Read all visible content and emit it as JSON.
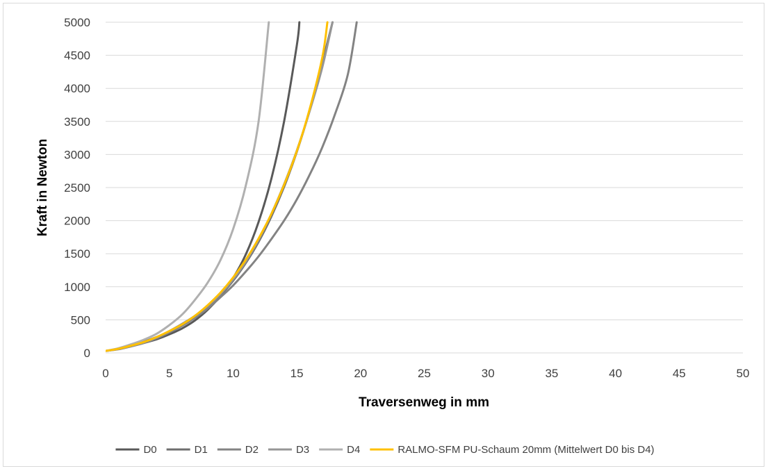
{
  "chart_data": {
    "type": "line",
    "title": "",
    "xlabel": "Traversenweg in mm",
    "ylabel": "Kraft in Newton",
    "xlim": [
      0,
      50
    ],
    "ylim": [
      0,
      5000
    ],
    "x_ticks": [
      0,
      5,
      10,
      15,
      20,
      25,
      30,
      35,
      40,
      45,
      50
    ],
    "y_ticks": [
      0,
      500,
      1000,
      1500,
      2000,
      2500,
      3000,
      3500,
      4000,
      4500,
      5000
    ],
    "grid": "horizontal",
    "legend_position": "bottom",
    "series": [
      {
        "name": "D0",
        "color": "#595959",
        "width": 3,
        "points": [
          [
            0,
            30
          ],
          [
            1,
            60
          ],
          [
            2,
            100
          ],
          [
            3,
            150
          ],
          [
            4,
            205
          ],
          [
            5,
            280
          ],
          [
            6,
            370
          ],
          [
            7,
            490
          ],
          [
            8,
            650
          ],
          [
            9,
            860
          ],
          [
            10,
            1130
          ],
          [
            11,
            1490
          ],
          [
            12,
            1980
          ],
          [
            13,
            2630
          ],
          [
            14,
            3500
          ],
          [
            15,
            4650
          ],
          [
            15.2,
            5000
          ]
        ]
      },
      {
        "name": "D1",
        "color": "#6e6e6e",
        "width": 3,
        "points": [
          [
            0,
            30
          ],
          [
            1,
            60
          ],
          [
            2,
            110
          ],
          [
            3,
            170
          ],
          [
            4,
            240
          ],
          [
            5,
            320
          ],
          [
            6,
            420
          ],
          [
            7,
            540
          ],
          [
            8,
            690
          ],
          [
            9,
            870
          ],
          [
            10,
            1090
          ],
          [
            11,
            1360
          ],
          [
            12,
            1680
          ],
          [
            13,
            2060
          ],
          [
            14,
            2510
          ],
          [
            15,
            3040
          ],
          [
            16,
            3660
          ],
          [
            17,
            4390
          ],
          [
            17.8,
            5000
          ]
        ]
      },
      {
        "name": "D2",
        "color": "#838383",
        "width": 3,
        "points": [
          [
            0,
            30
          ],
          [
            1,
            55
          ],
          [
            2,
            100
          ],
          [
            3,
            150
          ],
          [
            4,
            220
          ],
          [
            5,
            310
          ],
          [
            6,
            410
          ],
          [
            7,
            530
          ],
          [
            8,
            670
          ],
          [
            9,
            840
          ],
          [
            10,
            1020
          ],
          [
            11,
            1230
          ],
          [
            12,
            1460
          ],
          [
            13,
            1720
          ],
          [
            14,
            2000
          ],
          [
            15,
            2320
          ],
          [
            16,
            2690
          ],
          [
            17,
            3110
          ],
          [
            18,
            3610
          ],
          [
            19,
            4210
          ],
          [
            19.7,
            5000
          ]
        ]
      },
      {
        "name": "D3",
        "color": "#969696",
        "width": 3,
        "points": [
          [
            0,
            30
          ],
          [
            1,
            60
          ],
          [
            2,
            105
          ],
          [
            3,
            160
          ],
          [
            4,
            235
          ],
          [
            5,
            330
          ],
          [
            6,
            440
          ],
          [
            7,
            560
          ],
          [
            8,
            710
          ],
          [
            9,
            890
          ],
          [
            10,
            1110
          ],
          [
            11,
            1380
          ],
          [
            12,
            1710
          ],
          [
            13,
            2100
          ],
          [
            14,
            2550
          ],
          [
            15,
            3060
          ],
          [
            16,
            3650
          ],
          [
            17,
            4320
          ],
          [
            17.8,
            5000
          ]
        ]
      },
      {
        "name": "D4",
        "color": "#b0b0b0",
        "width": 3,
        "points": [
          [
            0,
            30
          ],
          [
            1,
            70
          ],
          [
            2,
            130
          ],
          [
            3,
            200
          ],
          [
            4,
            290
          ],
          [
            5,
            420
          ],
          [
            6,
            580
          ],
          [
            7,
            800
          ],
          [
            8,
            1060
          ],
          [
            9,
            1400
          ],
          [
            10,
            1870
          ],
          [
            11,
            2530
          ],
          [
            12,
            3500
          ],
          [
            12.8,
            5000
          ]
        ]
      },
      {
        "name": "RALMO-SFM PU-Schaum 20mm (Mittelwert D0 bis D4)",
        "color": "#ffc000",
        "width": 3,
        "points": [
          [
            0,
            30
          ],
          [
            1,
            62
          ],
          [
            2,
            110
          ],
          [
            3,
            165
          ],
          [
            4,
            240
          ],
          [
            5,
            330
          ],
          [
            6,
            430
          ],
          [
            7,
            560
          ],
          [
            8,
            720
          ],
          [
            9,
            910
          ],
          [
            10,
            1140
          ],
          [
            11,
            1410
          ],
          [
            12,
            1730
          ],
          [
            13,
            2100
          ],
          [
            14,
            2540
          ],
          [
            15,
            3050
          ],
          [
            16,
            3680
          ],
          [
            17,
            4470
          ],
          [
            17.4,
            5000
          ]
        ]
      }
    ]
  }
}
